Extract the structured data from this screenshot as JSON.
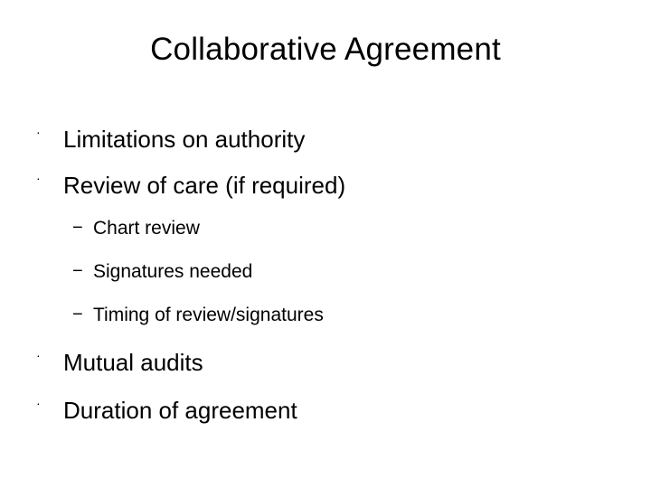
{
  "slide": {
    "title": "Collaborative Agreement",
    "bullets": [
      {
        "marker": "·",
        "text": "Limitations on authority"
      },
      {
        "marker": "·",
        "text": "Review of care (if required)"
      },
      {
        "marker": "−",
        "text": "Chart review"
      },
      {
        "marker": "−",
        "text": "Signatures needed"
      },
      {
        "marker": "−",
        "text": "Timing of review/signatures"
      },
      {
        "marker": "·",
        "text": "Mutual audits"
      },
      {
        "marker": "·",
        "text": "Duration of agreement"
      }
    ]
  }
}
